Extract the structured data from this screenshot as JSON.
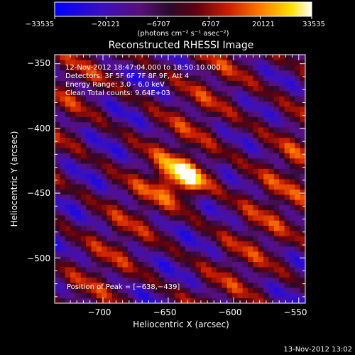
{
  "colorbar": {
    "ticks": [
      "−33535",
      "−20121",
      "−6707",
      "6707",
      "20121",
      "33535"
    ],
    "tick_values": [
      -33535,
      -20121,
      -6707,
      6707,
      20121,
      33535
    ],
    "units_label": "(photons cm⁻² s⁻¹ asec⁻²)",
    "colors": [
      "#0000ff",
      "#3a10c0",
      "#5a0f7a",
      "#2a0a2a",
      "#600010",
      "#cc2000",
      "#ff7a00",
      "#ffe000",
      "#ffffff"
    ]
  },
  "chart_data": {
    "type": "heatmap",
    "title": "Reconstructed RHESSI Image",
    "xlabel": "Heliocentric X (arcsec)",
    "ylabel": "Heliocentric Y (arcsec)",
    "xlim": [
      -737,
      -545
    ],
    "ylim": [
      -535,
      -343
    ],
    "x_ticks": [
      -700,
      -650,
      -600,
      -550
    ],
    "y_ticks": [
      -500,
      -450,
      -400,
      -350
    ],
    "x_tick_labels": [
      "−700",
      "−650",
      "−600",
      "−550"
    ],
    "y_tick_labels": [
      "−500",
      "−450",
      "−400",
      "−350"
    ],
    "peak_position": [
      -638,
      -439
    ],
    "value_range": [
      -33535,
      33535
    ],
    "annotations": [
      "12-Nov-2012 18:47:04.000 to 18:50:10.000",
      "Detectors: 3F 5F 6F 7F 8F 9F, Att 4",
      "Energy Range: 3.0 - 6.0 keV",
      "Clean      Total counts: 9.64E+03"
    ],
    "peak_label": "Position of Peak = [−638,−439]"
  },
  "footer": {
    "timestamp": "13-Nov-2012 13:02"
  }
}
